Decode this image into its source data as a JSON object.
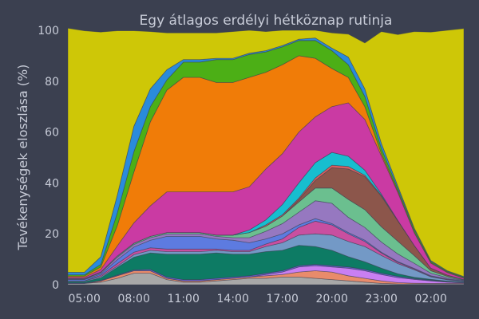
{
  "chart_data": {
    "type": "area",
    "stacked": true,
    "title": "Egy átlagos erdélyi hétköznap rutinja",
    "xlabel": "",
    "ylabel": "Tevékenységek eloszlása (%)",
    "ylim": [
      0,
      100
    ],
    "x_ticks": [
      "05:00",
      "08:00",
      "11:00",
      "14:00",
      "17:00",
      "20:00",
      "23:00",
      "02:00"
    ],
    "y_ticks": [
      0,
      20,
      40,
      60,
      80,
      100
    ],
    "grid": false,
    "x": [
      "04:00",
      "05:00",
      "06:00",
      "07:00",
      "08:00",
      "09:00",
      "10:00",
      "11:00",
      "12:00",
      "13:00",
      "14:00",
      "15:00",
      "16:00",
      "17:00",
      "18:00",
      "19:00",
      "20:00",
      "21:00",
      "22:00",
      "23:00",
      "00:00",
      "01:00",
      "02:00",
      "03:00",
      "04:00"
    ],
    "series": [
      {
        "color": "#a8a8a8",
        "values": [
          0.5,
          0.5,
          1,
          2.5,
          4.5,
          4.5,
          2,
          1,
          1,
          1.5,
          2,
          2.5,
          2.5,
          3,
          3,
          2.5,
          2,
          1.5,
          1,
          0.5,
          0.3,
          0.3,
          0.3,
          0.3,
          0.3
        ]
      },
      {
        "color": "#e98b6b",
        "values": [
          0,
          0,
          0.5,
          1,
          1,
          1,
          0.5,
          0.5,
          0.5,
          0.5,
          0.5,
          0.5,
          1,
          1,
          2,
          3,
          3,
          2,
          1.5,
          1,
          0.5,
          0.3,
          0.2,
          0.2,
          0.2
        ]
      },
      {
        "color": "#c97ff2",
        "values": [
          0,
          0,
          0,
          0,
          0,
          0,
          0,
          0,
          0,
          0,
          0,
          0,
          0.5,
          1,
          2,
          2,
          2,
          3,
          3,
          2.5,
          2,
          1.5,
          1,
          0.5,
          0.2
        ]
      },
      {
        "color": "#6b5fd3",
        "values": [
          0.2,
          0.2,
          0.2,
          0.3,
          0.3,
          0.5,
          0.5,
          0.5,
          0.5,
          0.5,
          0.5,
          0.5,
          0.5,
          0.5,
          0.5,
          0.5,
          0.5,
          0.5,
          0.5,
          0.5,
          0.5,
          0.3,
          0.3,
          0.2,
          0.2
        ]
      },
      {
        "color": "#0d7b64",
        "values": [
          0.5,
          0.5,
          1,
          3,
          5,
          6.5,
          9,
          10,
          10,
          10,
          9,
          8.5,
          8.5,
          8,
          8,
          7,
          6,
          4,
          3,
          2,
          1,
          0.5,
          0.3,
          0.2,
          0.2
        ]
      },
      {
        "color": "#7399c6",
        "values": [
          0.3,
          0.3,
          0.5,
          0.5,
          1,
          1,
          1,
          1,
          1,
          1,
          1,
          1,
          2,
          3,
          4,
          5,
          6,
          6,
          6,
          5,
          4,
          3,
          1,
          0.5,
          0.3
        ]
      },
      {
        "color": "#c94fa0",
        "values": [
          0,
          0,
          0.5,
          1,
          1,
          1,
          1,
          1,
          1,
          0.5,
          0.5,
          0.5,
          1,
          1.5,
          3,
          5,
          4,
          3,
          2,
          1,
          0.5,
          0.3,
          0.2,
          0.2,
          0
        ]
      },
      {
        "color": "#5d7be0",
        "values": [
          0.5,
          0.5,
          0.5,
          1.5,
          2,
          3,
          5,
          5,
          5,
          4,
          4,
          3,
          2,
          2,
          1,
          1,
          0.5,
          0.5,
          0.5,
          0.3,
          0.3,
          0.2,
          0.2,
          0.2,
          0.2
        ]
      },
      {
        "color": "#9678c0",
        "values": [
          0.2,
          0.2,
          0.5,
          1,
          1,
          1,
          1,
          1,
          1,
          1,
          1,
          2,
          3,
          4,
          5,
          7,
          8,
          6,
          5,
          4,
          3,
          2,
          1,
          0.5,
          0.2
        ]
      },
      {
        "color": "#6bbf8f",
        "values": [
          0.2,
          0.2,
          0.3,
          0.5,
          0.5,
          0.5,
          0.5,
          0.5,
          0.5,
          0.5,
          1,
          2,
          2,
          3,
          4,
          5,
          6,
          7,
          7,
          6,
          5,
          3,
          1,
          0.5,
          0.2
        ]
      },
      {
        "color": "#8c564b",
        "values": [
          0,
          0,
          0,
          0,
          0,
          0,
          0,
          0,
          0,
          0,
          0,
          0,
          0,
          0,
          1,
          3,
          8,
          12,
          13,
          12,
          8,
          4,
          1,
          0.5,
          0
        ]
      },
      {
        "color": "#d65f5f",
        "values": [
          0,
          0,
          0,
          0,
          0,
          0,
          0,
          0,
          0,
          0,
          0,
          0,
          0.5,
          0.5,
          0.5,
          1,
          1,
          1,
          0.5,
          0.3,
          0.2,
          0,
          0,
          0,
          0
        ]
      },
      {
        "color": "#17becf",
        "values": [
          0,
          0,
          0,
          0,
          0,
          0,
          0,
          0,
          0,
          0,
          0,
          1,
          2,
          4,
          6,
          6,
          5,
          4,
          2,
          0.5,
          0,
          0,
          0,
          0,
          0
        ]
      },
      {
        "color": "#ca3aa3",
        "values": [
          0.5,
          0.5,
          1,
          4,
          8,
          12,
          16,
          16,
          16,
          17,
          17,
          17,
          20,
          20,
          20,
          18,
          18,
          21,
          20,
          15,
          11,
          5,
          2,
          1,
          0.5
        ]
      },
      {
        "color": "#f07c08",
        "values": [
          0.5,
          0.5,
          1,
          8,
          20,
          33,
          40,
          45,
          45,
          43,
          43,
          43,
          38,
          35,
          30,
          23,
          15,
          10,
          5,
          1,
          0.5,
          0.3,
          0.2,
          0.2,
          0.2
        ]
      },
      {
        "color": "#4caf16",
        "values": [
          0.5,
          0.5,
          1,
          5,
          8,
          6,
          4,
          6,
          6,
          9,
          9,
          9,
          8,
          7,
          6,
          7,
          7,
          5,
          4,
          2,
          1,
          1,
          0.5,
          0.3,
          0.3
        ]
      },
      {
        "color": "#2a8bdc",
        "values": [
          1,
          1,
          3,
          7,
          10,
          7,
          4,
          1,
          1,
          0.5,
          0.5,
          0.5,
          0.5,
          0.5,
          0.5,
          1,
          1,
          3,
          3,
          2,
          1,
          0.5,
          0.3,
          0.2,
          0.2
        ]
      },
      {
        "color": "#cec707",
        "values": [
          95.9,
          94.9,
          88.3,
          64.5,
          37.5,
          22.5,
          14.5,
          10.5,
          10.5,
          10.0,
          10.5,
          9.0,
          7.5,
          6.0,
          3.5,
          3.0,
          6.0,
          9.0,
          18.0,
          43.9,
          59.5,
          77.3,
          89.8,
          94.5,
          97.5
        ]
      }
    ]
  }
}
